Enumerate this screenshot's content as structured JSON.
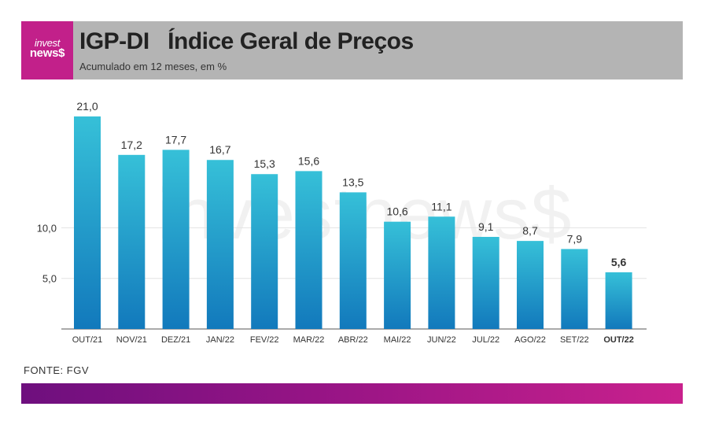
{
  "brand": {
    "logo_line1": "invest",
    "logo_line2": "news$",
    "watermark": "investnews$"
  },
  "header": {
    "title": "IGP-DI   Índice Geral de Preços",
    "subtitle": "Acumulado em 12 meses, em %"
  },
  "source": "FONTE: FGV",
  "colors": {
    "bar_top": "#36c0d8",
    "bar_bottom": "#1279bc",
    "header_bg": "#b4b4b4",
    "brand": "#c2208a"
  },
  "chart_data": {
    "type": "bar",
    "categories": [
      "OUT/21",
      "NOV/21",
      "DEZ/21",
      "JAN/22",
      "FEV/22",
      "MAR/22",
      "ABR/22",
      "MAI/22",
      "JUN/22",
      "JUL/22",
      "AGO/22",
      "SET/22",
      "OUT/22"
    ],
    "values": [
      21.0,
      17.2,
      17.7,
      16.7,
      15.3,
      15.6,
      13.5,
      10.6,
      11.1,
      9.1,
      8.7,
      7.9,
      5.6
    ],
    "value_labels": [
      "21,0",
      "17,2",
      "17,7",
      "16,7",
      "15,3",
      "15,6",
      "13,5",
      "10,6",
      "11,1",
      "9,1",
      "8,7",
      "7,9",
      "5,6"
    ],
    "highlight_last": true,
    "yticks": [
      5.0,
      10.0
    ],
    "ytick_labels": [
      "5,0",
      "10,0"
    ],
    "ylim": [
      0,
      21
    ],
    "grid": true,
    "title": "IGP-DI   Índice Geral de Preços",
    "xlabel": "",
    "ylabel": ""
  }
}
